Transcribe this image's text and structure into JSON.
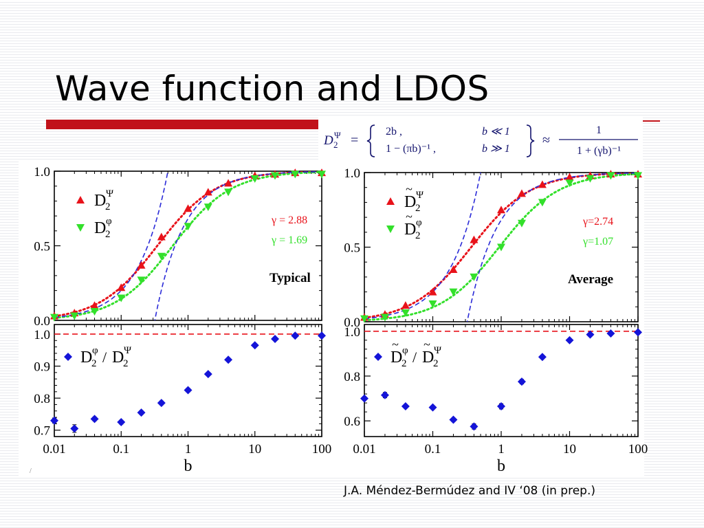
{
  "slide": {
    "title": "Wave function and LDOS",
    "citation": "J.A. Méndez-Bermúdez and IV ‘08 (in prep.)"
  },
  "formula": {
    "lhs": "D",
    "lhs_sub": "2",
    "lhs_sup": "Ψ",
    "case1_value": "2b ,",
    "case1_condition": "b ≪ 1",
    "case2_value": "1 − (πb)⁻¹ ,",
    "case2_condition": "b ≫ 1",
    "approx_numerator": "1",
    "approx_denominator": "1 + (γb)⁻¹"
  },
  "colors": {
    "red": "#e8121a",
    "green": "#33e02b",
    "blue": "#1414d8",
    "dashed_blue": "#2b2bd8",
    "dashed_red": "#e8121a",
    "accent_bar": "#c1121a"
  },
  "chart_data": [
    {
      "type": "scatter",
      "panel": "top-left",
      "xscale": "log",
      "xlim": [
        0.01,
        100
      ],
      "ylim": [
        0,
        1
      ],
      "yticks": [
        "0.0",
        "0.5",
        "1.0"
      ],
      "label": "Typical",
      "gamma_labels": [
        "γ = 2.88",
        "γ = 1.69"
      ],
      "legend": [
        {
          "symbol": "triangle-up",
          "color": "#e8121a",
          "base": "D",
          "sub": "2",
          "sup": "Ψ"
        },
        {
          "symbol": "triangle-down",
          "color": "#33e02b",
          "base": "D",
          "sub": "2",
          "sup": "φ"
        }
      ],
      "series": [
        {
          "marker": "triangle-up",
          "color": "#e8121a",
          "gamma": 2.88,
          "x": [
            0.01,
            0.02,
            0.04,
            0.1,
            0.2,
            0.4,
            1,
            2,
            4,
            10,
            20,
            40,
            100
          ],
          "y": [
            0.03,
            0.05,
            0.1,
            0.22,
            0.37,
            0.56,
            0.75,
            0.86,
            0.92,
            0.97,
            0.98,
            0.99,
            0.99
          ]
        },
        {
          "marker": "triangle-down",
          "color": "#33e02b",
          "gamma": 1.69,
          "x": [
            0.01,
            0.02,
            0.04,
            0.1,
            0.2,
            0.4,
            1,
            2,
            4,
            10,
            20,
            40,
            100
          ],
          "y": [
            0.02,
            0.03,
            0.06,
            0.15,
            0.27,
            0.43,
            0.63,
            0.76,
            0.86,
            0.95,
            0.97,
            0.98,
            0.98
          ]
        }
      ],
      "curves": [
        {
          "kind": "gamma-fit",
          "gamma": 2.88,
          "color": "#e8121a",
          "style": "dotted"
        },
        {
          "kind": "gamma-fit",
          "gamma": 1.69,
          "color": "#33e02b",
          "style": "dotted"
        },
        {
          "kind": "small-b",
          "color": "#2b2bd8",
          "style": "dashed"
        },
        {
          "kind": "large-b",
          "color": "#2b2bd8",
          "style": "dashed"
        }
      ]
    },
    {
      "type": "scatter",
      "panel": "top-right",
      "xscale": "log",
      "xlim": [
        0.01,
        100
      ],
      "ylim": [
        0,
        1
      ],
      "yticks": [
        "0.0",
        "0.5",
        "1.0"
      ],
      "label": "Average",
      "gamma_labels": [
        "γ=2.74",
        "γ=1.07"
      ],
      "legend": [
        {
          "symbol": "triangle-up",
          "color": "#e8121a",
          "base": "D",
          "sub": "2",
          "sup": "Ψ",
          "tilde": true
        },
        {
          "symbol": "triangle-down",
          "color": "#33e02b",
          "base": "D",
          "sub": "2",
          "sup": "φ",
          "tilde": true
        }
      ],
      "series": [
        {
          "marker": "triangle-up",
          "color": "#e8121a",
          "gamma": 2.74,
          "x": [
            0.01,
            0.02,
            0.04,
            0.1,
            0.2,
            0.4,
            1,
            2,
            4,
            10,
            20,
            40,
            100
          ],
          "y": [
            0.03,
            0.05,
            0.11,
            0.2,
            0.35,
            0.55,
            0.75,
            0.86,
            0.92,
            0.97,
            0.98,
            0.99,
            0.99
          ]
        },
        {
          "marker": "triangle-down",
          "color": "#33e02b",
          "gamma": 1.07,
          "x": [
            0.01,
            0.02,
            0.04,
            0.1,
            0.2,
            0.4,
            1,
            2,
            4,
            10,
            20,
            40,
            100
          ],
          "y": [
            0.02,
            0.03,
            0.06,
            0.12,
            0.2,
            0.3,
            0.5,
            0.66,
            0.8,
            0.93,
            0.96,
            0.98,
            0.98
          ]
        }
      ],
      "curves": [
        {
          "kind": "gamma-fit",
          "gamma": 2.74,
          "color": "#e8121a",
          "style": "dotted"
        },
        {
          "kind": "gamma-fit",
          "gamma": 1.07,
          "color": "#33e02b",
          "style": "dotted"
        },
        {
          "kind": "small-b",
          "color": "#2b2bd8",
          "style": "dashed"
        },
        {
          "kind": "large-b",
          "color": "#2b2bd8",
          "style": "dashed"
        }
      ]
    },
    {
      "type": "scatter",
      "panel": "bottom-left",
      "xscale": "log",
      "xlim": [
        0.01,
        100
      ],
      "ylim": [
        0.68,
        1.03
      ],
      "yticks": [
        "0.7",
        "0.8",
        "0.9",
        "1.0"
      ],
      "xticks": [
        "0.01",
        "0.1",
        "1",
        "10",
        "100"
      ],
      "xlabel": "b",
      "legend": [
        {
          "symbol": "diamond",
          "color": "#1414d8",
          "num": {
            "base": "D",
            "sub": "2",
            "sup": "φ"
          },
          "den": {
            "base": "D",
            "sub": "2",
            "sup": "Ψ"
          }
        }
      ],
      "reference_line": {
        "y": 1.0,
        "color": "#e8121a",
        "style": "dashed"
      },
      "series": [
        {
          "marker": "diamond",
          "color": "#1414d8",
          "x": [
            0.01,
            0.02,
            0.04,
            0.1,
            0.2,
            0.4,
            1,
            2,
            4,
            10,
            20,
            40,
            100
          ],
          "y": [
            0.73,
            0.705,
            0.735,
            0.725,
            0.755,
            0.785,
            0.825,
            0.875,
            0.92,
            0.965,
            0.985,
            0.995,
            0.995
          ],
          "err": [
            0.008,
            0.012,
            0.006,
            0.006,
            0.006,
            0.006,
            0.006,
            0.005,
            0.004,
            0.005,
            0.004,
            0.003,
            0.003
          ]
        }
      ]
    },
    {
      "type": "scatter",
      "panel": "bottom-right",
      "xscale": "log",
      "xlim": [
        0.01,
        100
      ],
      "ylim": [
        0.53,
        1.03
      ],
      "yticks": [
        "0.6",
        "0.8",
        "1.0"
      ],
      "xticks": [
        "0.01",
        "0.1",
        "1",
        "10",
        "100"
      ],
      "xlabel": "b",
      "legend": [
        {
          "symbol": "diamond",
          "color": "#1414d8",
          "num": {
            "base": "D",
            "sub": "2",
            "sup": "φ",
            "tilde": true
          },
          "den": {
            "base": "D",
            "sub": "2",
            "sup": "Ψ",
            "tilde": true
          }
        }
      ],
      "reference_line": {
        "y": 1.0,
        "color": "#e8121a",
        "style": "dashed"
      },
      "series": [
        {
          "marker": "diamond",
          "color": "#1414d8",
          "x": [
            0.01,
            0.02,
            0.04,
            0.1,
            0.2,
            0.4,
            1,
            2,
            4,
            10,
            20,
            40,
            100
          ],
          "y": [
            0.7,
            0.715,
            0.665,
            0.66,
            0.605,
            0.575,
            0.665,
            0.775,
            0.885,
            0.96,
            0.985,
            0.99,
            0.995
          ],
          "err": [
            0.008,
            0.012,
            0.008,
            0.008,
            0.008,
            0.012,
            0.012,
            0.01,
            0.008,
            0.006,
            0.005,
            0.004,
            0.004
          ]
        }
      ]
    }
  ]
}
